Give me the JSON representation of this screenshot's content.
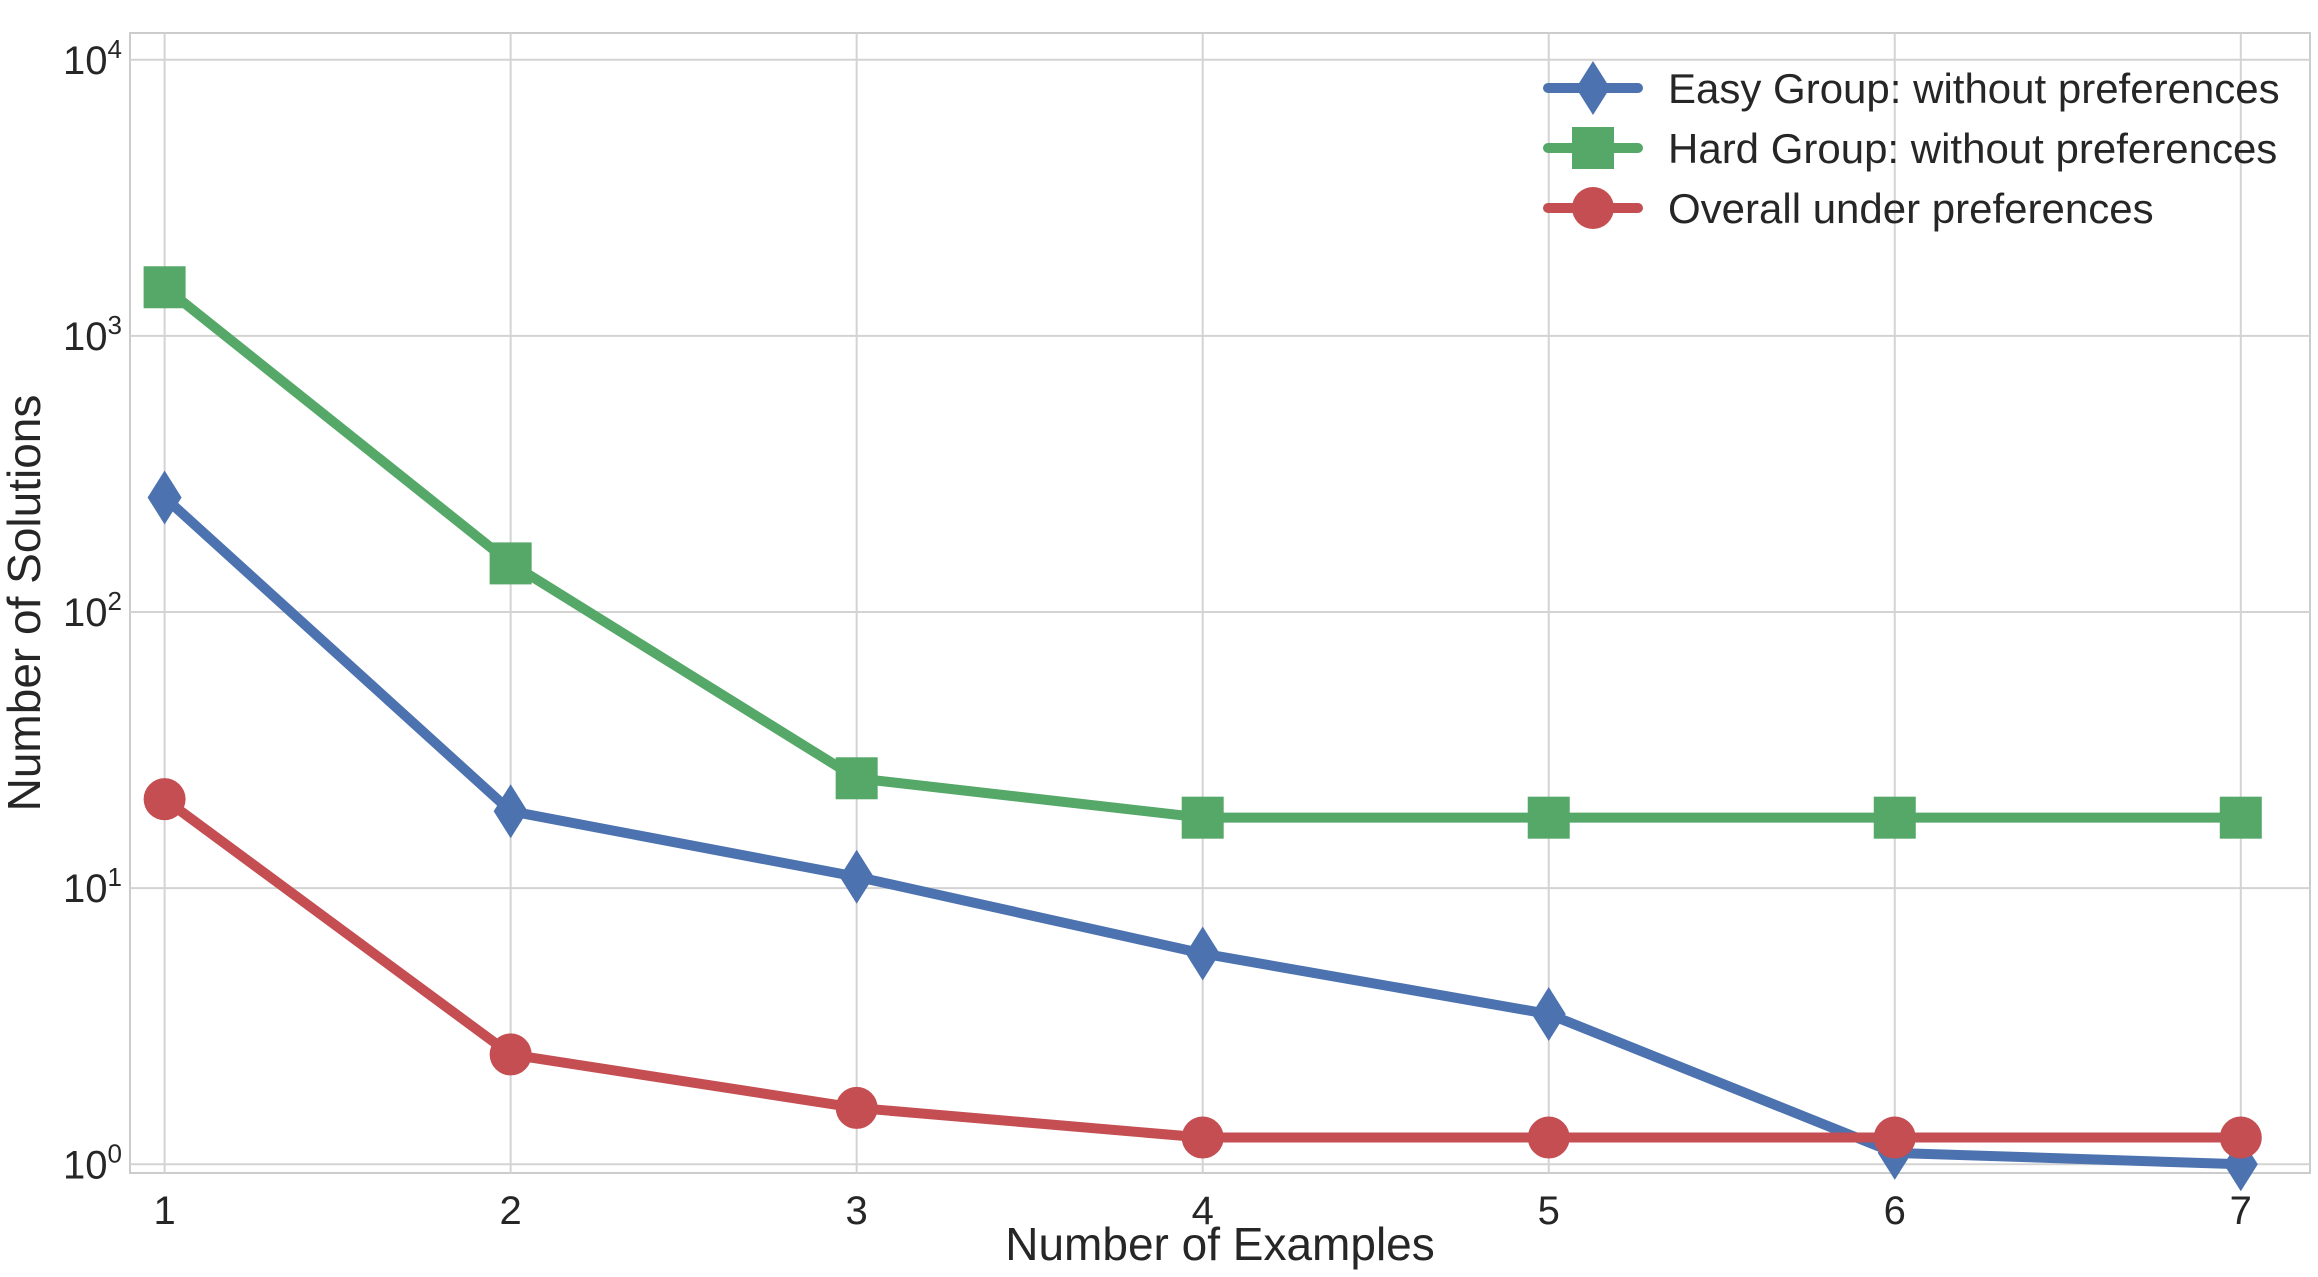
{
  "chart_data": {
    "type": "line",
    "title": "",
    "xlabel": "Number of Examples",
    "ylabel": "Number of Solutions",
    "x": [
      1,
      2,
      3,
      4,
      5,
      6,
      7
    ],
    "xlim": [
      0.9,
      7.2
    ],
    "x_ticks": [
      "1",
      "2",
      "3",
      "4",
      "5",
      "6",
      "7"
    ],
    "yscale": "log",
    "ylim": [
      0.93,
      12500
    ],
    "y_ticks": [
      {
        "value": 1,
        "base": "10",
        "exp": "0"
      },
      {
        "value": 10,
        "base": "10",
        "exp": "1"
      },
      {
        "value": 100,
        "base": "10",
        "exp": "2"
      },
      {
        "value": 1000,
        "base": "10",
        "exp": "3"
      },
      {
        "value": 10000,
        "base": "10",
        "exp": "4"
      }
    ],
    "grid": true,
    "legend_position": "top-right",
    "series": [
      {
        "name": "Easy Group: without preferences",
        "marker": "diamond",
        "color": "#4c72b0",
        "values": [
          260,
          19,
          11,
          5.8,
          3.5,
          1.1,
          1.0
        ]
      },
      {
        "name": "Hard Group: without preferences",
        "marker": "square",
        "color": "#55a868",
        "values": [
          1500,
          150,
          25,
          18,
          18,
          18,
          18
        ]
      },
      {
        "name": "Overall under preferences",
        "marker": "circle",
        "color": "#c44e52",
        "values": [
          21,
          2.5,
          1.6,
          1.25,
          1.25,
          1.25,
          1.25
        ]
      }
    ]
  }
}
